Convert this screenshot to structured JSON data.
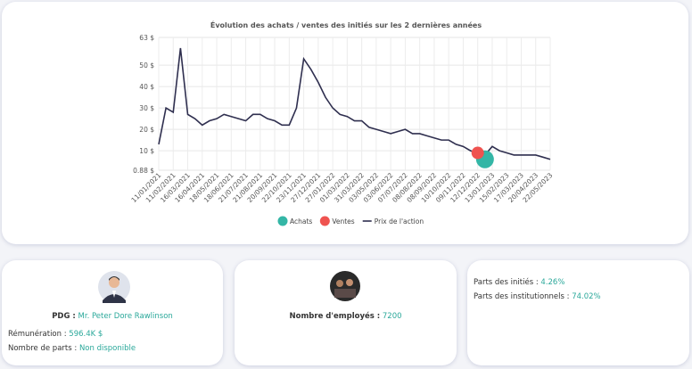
{
  "chart_data": {
    "type": "line",
    "title": "Évolution des achats / ventes des initiés sur les 2 dernières années",
    "categories": [
      "11/01/2021",
      null,
      "11/02/2021",
      null,
      "16/03/2021",
      null,
      "16/04/2021",
      null,
      "18/05/2021",
      null,
      "18/06/2021",
      null,
      "21/07/2021",
      null,
      "21/08/2021",
      null,
      "20/09/2021",
      null,
      "22/10/2021",
      null,
      "23/11/2021",
      null,
      "27/12/2021",
      null,
      "27/01/2022",
      null,
      "01/03/2022",
      null,
      "31/03/2022",
      null,
      "03/05/2022",
      null,
      "03/06/2022",
      null,
      "07/07/2022",
      null,
      "08/08/2022",
      null,
      "08/09/2022",
      null,
      "10/10/2022",
      null,
      "09/11/2022",
      null,
      "12/12/2022",
      null,
      "13/01/2023",
      null,
      "15/02/2023",
      null,
      "17/03/2023",
      null,
      "20/04/2023",
      null,
      "22/05/2023"
    ],
    "series": [
      {
        "name": "Achats",
        "type": "scatter",
        "color": "#34b6a6",
        "values": [
          null,
          null,
          null,
          null,
          null,
          null,
          null,
          null,
          null,
          null,
          null,
          null,
          null,
          null,
          null,
          null,
          null,
          null,
          null,
          null,
          null,
          null,
          null,
          null,
          null,
          null,
          null,
          null,
          null,
          null,
          null,
          null,
          null,
          null,
          null,
          null,
          null,
          null,
          null,
          null,
          null,
          null,
          null,
          null,
          null,
          6,
          null,
          null,
          null,
          null,
          null,
          null,
          null,
          null,
          null
        ]
      },
      {
        "name": "Ventes",
        "type": "scatter",
        "color": "#ef5350",
        "values": [
          null,
          null,
          null,
          null,
          null,
          null,
          null,
          null,
          null,
          null,
          null,
          null,
          null,
          null,
          null,
          null,
          null,
          null,
          null,
          null,
          null,
          null,
          null,
          null,
          null,
          null,
          null,
          null,
          null,
          null,
          null,
          null,
          null,
          null,
          null,
          null,
          null,
          null,
          null,
          null,
          null,
          null,
          null,
          null,
          9,
          null,
          null,
          null,
          null,
          null,
          null,
          null,
          null,
          null,
          null
        ]
      },
      {
        "name": "Prix de l'action",
        "type": "line",
        "color": "#2f2f4f",
        "values": [
          13,
          30,
          28,
          58,
          27,
          25,
          22,
          24,
          25,
          27,
          26,
          25,
          24,
          27,
          27,
          25,
          24,
          22,
          22,
          30,
          53,
          48,
          42,
          35,
          30,
          27,
          26,
          24,
          24,
          21,
          20,
          19,
          18,
          19,
          20,
          18,
          18,
          17,
          16,
          15,
          15,
          13,
          12,
          10,
          9,
          8,
          12,
          10,
          9,
          8,
          8,
          8,
          8,
          7,
          6
        ]
      }
    ],
    "ylim": [
      0.88,
      63
    ],
    "yticks": [
      {
        "value": 0.88,
        "label": "0.88 $"
      },
      {
        "value": 10,
        "label": "10 $"
      },
      {
        "value": 20,
        "label": "20 $"
      },
      {
        "value": 30,
        "label": "30 $"
      },
      {
        "value": 40,
        "label": "40 $"
      },
      {
        "value": 50,
        "label": "50 $"
      },
      {
        "value": 63,
        "label": "63 $"
      }
    ],
    "grid": true
  },
  "cards": {
    "ceo": {
      "label": "PDG :",
      "value": "Mr. Peter Dore Rawlinson",
      "pay_label": "Rémunération :",
      "pay": "596.4K $",
      "shares_label": "Nombre de parts :",
      "shares": "Non disponible"
    },
    "employees": {
      "label": "Nombre d'employés :",
      "value": "7200"
    },
    "ownership": {
      "insiders_label": "Parts des initiés :",
      "insiders": "4.26%",
      "institutions_label": "Parts des institutionnels :",
      "institutions": "74.02%"
    }
  }
}
